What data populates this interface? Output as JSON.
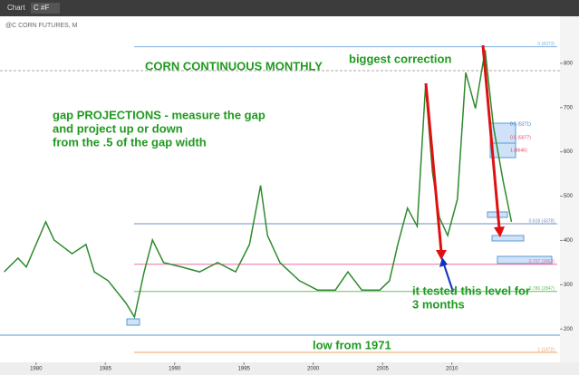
{
  "chart_data": {
    "type": "line",
    "app": {
      "window_title": "Chart",
      "symbol": "C #F",
      "header": "@C CORN FUTURES, M"
    },
    "title": "CORN CONTINUOUS MONTHLY",
    "annotations": {
      "correction": "biggest correction",
      "gap": [
        "gap PROJECTIONS - measure the gap",
        "and project up or down",
        "from the .5 of the gap width"
      ],
      "tested": [
        "it tested this level for",
        "3 months"
      ],
      "low": "low from 1971"
    },
    "x": [
      1977.7,
      1978.7,
      1979.3,
      1980.7,
      1981.3,
      1982.6,
      1983.6,
      1984.2,
      1985.2,
      1986.5,
      1987.1,
      1987.8,
      1988.4,
      1989.2,
      1990.5,
      1991.8,
      1993.1,
      1994.4,
      1995.4,
      1996.2,
      1996.7,
      1997.6,
      1999.0,
      2000.3,
      2001.6,
      2002.5,
      2003.5,
      2004.8,
      2005.5,
      2006.1,
      2006.8,
      2007.5,
      2008.1,
      2008.6,
      2009.1,
      2009.7,
      2010.4,
      2011.0,
      2011.7,
      2012.4,
      2013.0,
      2013.7,
      2014.3
    ],
    "series": [
      {
        "color": "#2e8b2e",
        "values": [
          329,
          360,
          340,
          442,
          401,
          370,
          391,
          329,
          309,
          258,
          227,
          329,
          401,
          350,
          340,
          329,
          350,
          329,
          391,
          524,
          411,
          350,
          309,
          288,
          288,
          329,
          288,
          288,
          309,
          391,
          473,
          432,
          749,
          554,
          452,
          411,
          493,
          779,
          698,
          830,
          657,
          534,
          442
        ]
      }
    ],
    "levels": [
      {
        "value": 837.3,
        "label": "0 (8373)",
        "color": "#7fb0e0"
      },
      {
        "value": 437.8,
        "label": "0.618 (4378)",
        "color": "#6f8fc0"
      },
      {
        "value": 346.3,
        "label": "0.707 (3463)",
        "color": "#ee6fa0"
      },
      {
        "value": 284.7,
        "label": "0.786 (2847)",
        "color": "#60c060"
      },
      {
        "value": 147.2,
        "label": "1 (1472)",
        "color": "#f0a060"
      }
    ],
    "box_labels": [
      "0.5 (5271)",
      "0.5 (5077)",
      "1 (4646)"
    ],
    "xlim": [
      1977.4,
      2017.8
    ],
    "xticks": [
      1980,
      1985,
      1990,
      1995,
      2000,
      2005,
      2010
    ],
    "ylim": [
      135,
      902
    ],
    "yticks": [
      200,
      300,
      400,
      500,
      600,
      700,
      800
    ]
  }
}
